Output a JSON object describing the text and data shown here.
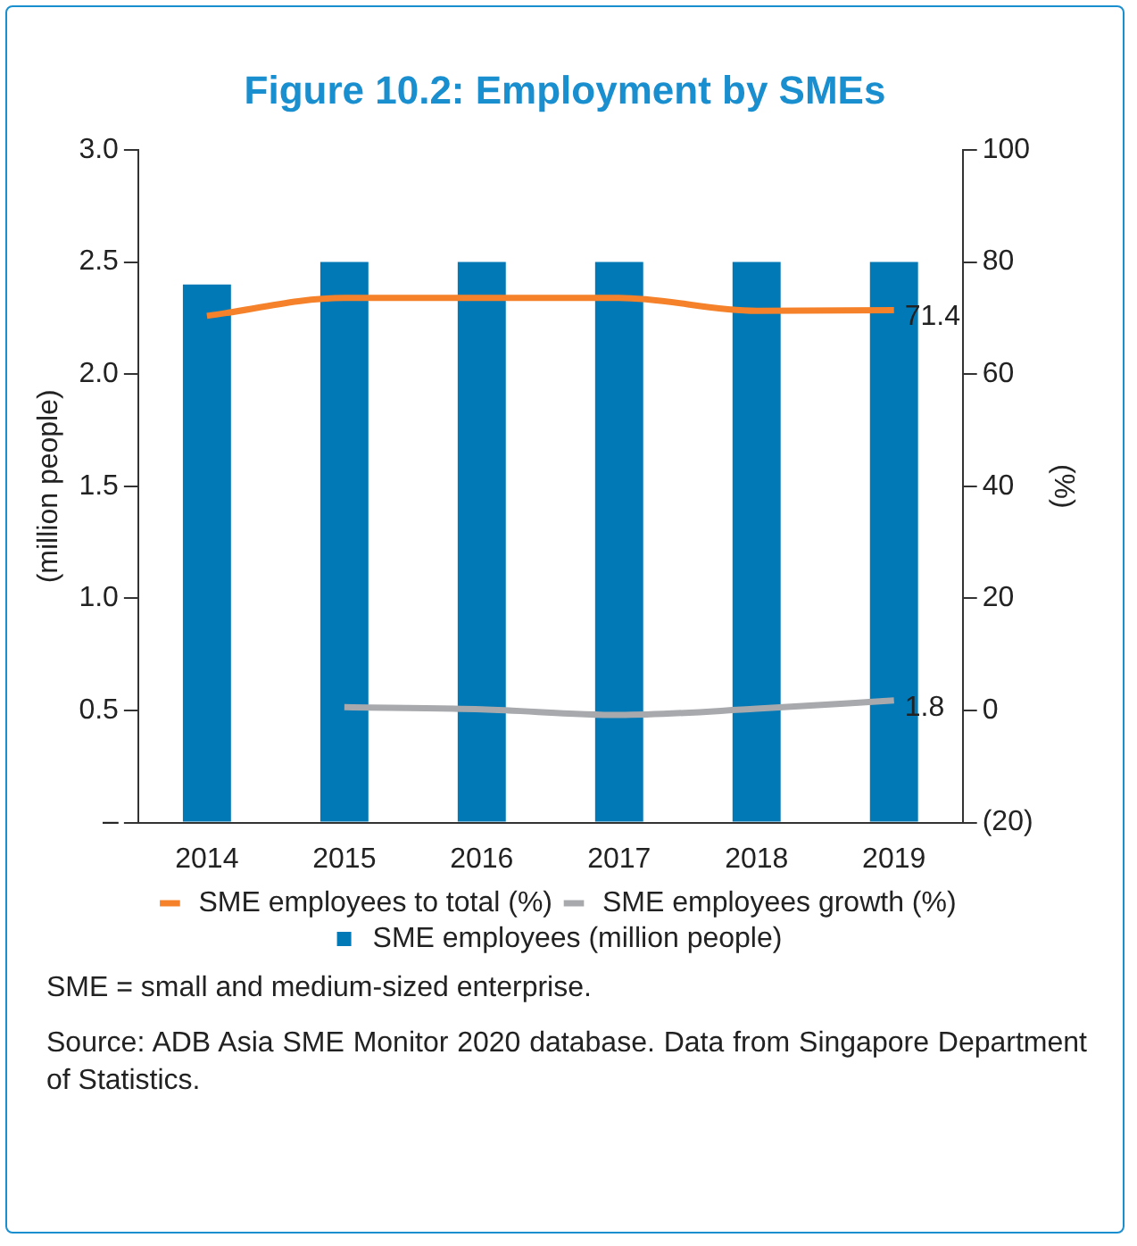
{
  "chart_data": {
    "type": "bar",
    "title": "Figure 10.2: Employment by SMEs",
    "ylabel": "(million people)",
    "y2label": "(%)",
    "categories": [
      "2014",
      "2015",
      "2016",
      "2017",
      "2018",
      "2019"
    ],
    "series": [
      {
        "name": "SME employees (million people)",
        "color": "#0079b6",
        "values": [
          2.4,
          2.5,
          2.5,
          2.5,
          2.5,
          2.5
        ]
      },
      {
        "name": "SME employees to total (%)",
        "type": "line",
        "axis": "y2",
        "color": "#f5822a",
        "values": [
          70.4,
          73.6,
          73.6,
          73.6,
          71.3,
          71.4
        ],
        "value_labels": [
          null,
          null,
          null,
          null,
          null,
          "71.4"
        ]
      },
      {
        "name": "SME employees growth (%)",
        "type": "line",
        "axis": "y2",
        "color": "#a7a9ac",
        "values": [
          null,
          0.6,
          0.2,
          -0.8,
          0.3,
          1.8
        ],
        "value_labels": [
          null,
          null,
          null,
          null,
          null,
          "1.8"
        ]
      }
    ],
    "ylim": [
      0,
      3
    ],
    "yticks": [
      {
        "value": 0,
        "label": "–"
      },
      {
        "value": 0.5,
        "label": "0.5"
      },
      {
        "value": 1,
        "label": "1.0"
      },
      {
        "value": 1.5,
        "label": "1.5"
      },
      {
        "value": 2,
        "label": "2.0"
      },
      {
        "value": 2.5,
        "label": "2.5"
      },
      {
        "value": 3,
        "label": "3.0"
      }
    ],
    "y2lim": [
      -20,
      100
    ],
    "y2ticks": [
      {
        "value": -20,
        "label": "(20)"
      },
      0,
      20,
      40,
      60,
      80,
      100
    ],
    "grid": false,
    "legend": "bottom",
    "marker": "none",
    "line_style": "solid",
    "annotations": [
      "SME = small and medium-sized enterprise.",
      "Source: ADB Asia SME Monitor 2020 database. Data from Singapore Department of Statistics."
    ]
  }
}
